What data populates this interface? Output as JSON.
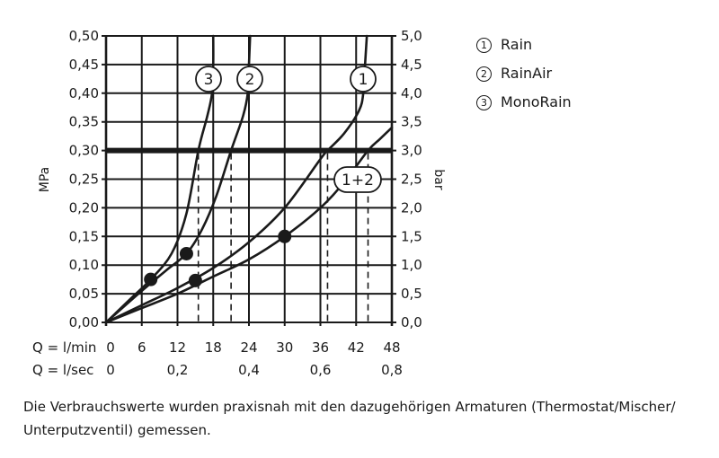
{
  "chart_data": {
    "type": "line",
    "title": "",
    "ylabel_left": "MPa",
    "ylabel_right": "bar",
    "xlabel_rows": [
      {
        "label": "Q = l/min",
        "ticks": [
          "0",
          "6",
          "12",
          "18",
          "24",
          "30",
          "36",
          "42",
          "48"
        ]
      },
      {
        "label": "Q = l/sec",
        "ticks": [
          "0",
          "0,2",
          "0,4",
          "0,6",
          "0,8"
        ]
      }
    ],
    "x_range_lmin": [
      0,
      48
    ],
    "ylim_mpa": [
      0,
      0.5
    ],
    "ylim_bar": [
      0,
      5.0
    ],
    "y_ticks_left": [
      "0,50",
      "0,45",
      "0,40",
      "0,35",
      "0,30",
      "0,25",
      "0,20",
      "0,15",
      "0,10",
      "0,05",
      "0,00"
    ],
    "y_ticks_right": [
      "5,0",
      "4,5",
      "4,0",
      "3,5",
      "3,0",
      "2,5",
      "2,0",
      "1,5",
      "1,0",
      "0,5",
      "0,0"
    ],
    "grid": true,
    "reference_line": {
      "y_mpa": 0.3,
      "label": "0,30 MPa / 3,0 bar",
      "style": "thick"
    },
    "series": [
      {
        "id": "1",
        "name": "Rain",
        "points": [
          [
            0,
            0
          ],
          [
            6,
            0.03
          ],
          [
            12,
            0.06
          ],
          [
            18,
            0.095
          ],
          [
            24,
            0.14
          ],
          [
            30,
            0.2
          ],
          [
            36,
            0.285
          ],
          [
            37.2,
            0.3
          ],
          [
            40,
            0.33
          ],
          [
            42.5,
            0.37
          ],
          [
            43.2,
            0.4
          ],
          [
            43.5,
            0.45
          ],
          [
            43.8,
            0.5
          ]
        ],
        "marker": [
          15,
          0.073
        ],
        "flow_at_0_3MPa_lmin": 37.2
      },
      {
        "id": "2",
        "name": "RainAir",
        "points": [
          [
            0,
            0
          ],
          [
            6,
            0.055
          ],
          [
            10,
            0.09
          ],
          [
            13.5,
            0.12
          ],
          [
            16,
            0.16
          ],
          [
            18.5,
            0.22
          ],
          [
            21,
            0.3
          ],
          [
            23,
            0.36
          ],
          [
            23.8,
            0.4
          ],
          [
            24,
            0.45
          ],
          [
            24.2,
            0.5
          ]
        ],
        "marker": [
          13.5,
          0.12
        ],
        "flow_at_0_3MPa_lmin": 21
      },
      {
        "id": "3",
        "name": "MonoRain",
        "points": [
          [
            0,
            0
          ],
          [
            4,
            0.04
          ],
          [
            7.5,
            0.075
          ],
          [
            11,
            0.12
          ],
          [
            13.5,
            0.19
          ],
          [
            15.5,
            0.3
          ],
          [
            17,
            0.36
          ],
          [
            17.8,
            0.4
          ],
          [
            18,
            0.45
          ],
          [
            18,
            0.5
          ]
        ],
        "marker": [
          7.5,
          0.075
        ],
        "flow_at_0_3MPa_lmin": 15.5
      },
      {
        "id": "1+2",
        "name": "1+2",
        "points": [
          [
            0,
            0
          ],
          [
            6,
            0.025
          ],
          [
            12,
            0.05
          ],
          [
            18,
            0.08
          ],
          [
            24,
            0.11
          ],
          [
            30,
            0.15
          ],
          [
            36,
            0.2
          ],
          [
            40,
            0.245
          ],
          [
            44,
            0.3
          ],
          [
            46,
            0.32
          ],
          [
            48,
            0.34
          ]
        ],
        "marker": [
          30,
          0.15
        ],
        "flow_at_0_3MPa_lmin": 44
      }
    ],
    "legend": [
      {
        "num": "1",
        "name": "Rain"
      },
      {
        "num": "2",
        "name": "RainAir"
      },
      {
        "num": "3",
        "name": "MonoRain"
      }
    ],
    "legend_position": "right",
    "curve_labels": [
      "3",
      "2",
      "1",
      "1+2"
    ]
  },
  "axis": {
    "left_title": "MPa",
    "right_title": "bar",
    "row1_label": "Q = l/min",
    "row2_label": "Q = l/sec"
  },
  "legend": [
    {
      "num": "①",
      "name": "Rain"
    },
    {
      "num": "②",
      "name": "RainAir"
    },
    {
      "num": "③",
      "name": "MonoRain"
    }
  ],
  "note": "Die Verbrauchswerte wurden praxisnah mit den dazugehörigen Armaturen (Thermostat/Mischer/ Unterputzventil) gemessen.",
  "colors": {
    "ink": "#1a1a1a",
    "background": "#ffffff"
  }
}
